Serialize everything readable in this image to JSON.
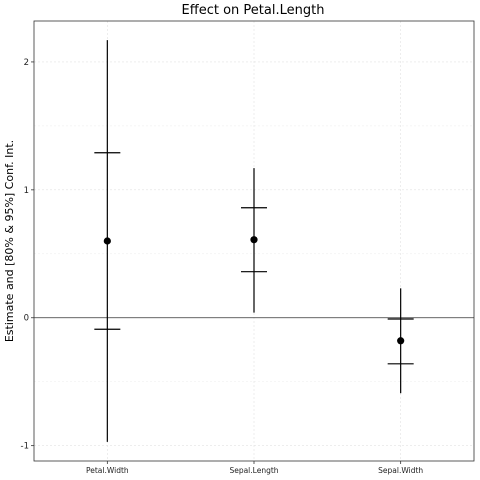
{
  "chart_data": {
    "type": "coefficient-interval",
    "title": "Effect on Petal.Length",
    "xlabel": "",
    "ylabel": "Estimate and [80% & 95%] Conf. Int.",
    "ylim": [
      -1.12,
      2.32
    ],
    "yticks": [
      -1,
      0,
      1,
      2
    ],
    "reference_line": 0,
    "grid": true,
    "categories": [
      "Petal.Width",
      "Sepal.Length",
      "Sepal.Width"
    ],
    "estimates": [
      0.6,
      0.61,
      -0.18
    ],
    "ci80": [
      [
        -0.09,
        1.29
      ],
      [
        0.36,
        0.86
      ],
      [
        -0.36,
        -0.01
      ]
    ],
    "ci95": [
      [
        -0.97,
        2.17
      ],
      [
        0.04,
        1.17
      ],
      [
        -0.59,
        0.23
      ]
    ]
  }
}
